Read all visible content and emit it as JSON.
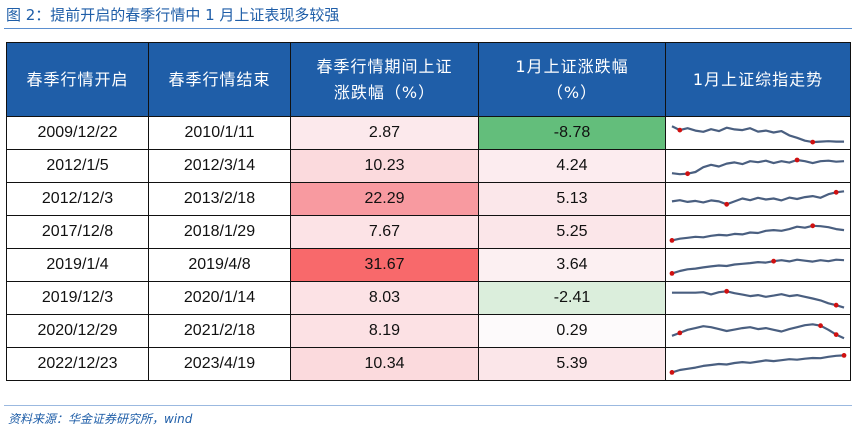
{
  "figure": {
    "title": "图 2：提前开启的春季行情中 1 月上证表现多较强",
    "source": "资料来源：华金证券研究所，wind"
  },
  "table": {
    "headers": [
      "春季行情开启",
      "春季行情结束",
      "春季行情期间上证\n涨跌幅（%）",
      "1月上证涨跌幅\n（%）",
      "1月上证综指走势"
    ],
    "rows": [
      {
        "start": "2009/12/22",
        "end": "2010/1/11",
        "spring_change": "2.87",
        "jan_change": "-8.78",
        "spring_bg": "#fce9ec",
        "jan_bg": "#63be7b",
        "spark": [
          0.78,
          0.62,
          0.7,
          0.6,
          0.55,
          0.66,
          0.58,
          0.72,
          0.65,
          0.62,
          0.7,
          0.56,
          0.6,
          0.52,
          0.58,
          0.4,
          0.3,
          0.18,
          0.12,
          0.14,
          0.16,
          0.14,
          0.14
        ],
        "marks": [
          1,
          18
        ]
      },
      {
        "start": "2012/1/5",
        "end": "2012/3/14",
        "spring_change": "10.23",
        "jan_change": "4.24",
        "spring_bg": "#fbdadd",
        "jan_bg": "#fcecef",
        "spark": [
          0.2,
          0.16,
          0.18,
          0.25,
          0.45,
          0.55,
          0.48,
          0.6,
          0.65,
          0.58,
          0.7,
          0.66,
          0.72,
          0.62,
          0.7,
          0.64,
          0.75,
          0.7,
          0.62,
          0.7,
          0.72,
          0.68,
          0.7
        ],
        "marks": [
          2,
          16
        ]
      },
      {
        "start": "2012/12/3",
        "end": "2013/2/18",
        "spring_change": "22.29",
        "jan_change": "5.13",
        "spring_bg": "#f89aa0",
        "jan_bg": "#fbe7ea",
        "spark": [
          0.4,
          0.45,
          0.38,
          0.42,
          0.36,
          0.44,
          0.4,
          0.28,
          0.4,
          0.52,
          0.45,
          0.55,
          0.48,
          0.52,
          0.44,
          0.56,
          0.5,
          0.58,
          0.62,
          0.55,
          0.7,
          0.78,
          0.82
        ],
        "marks": [
          7,
          21
        ]
      },
      {
        "start": "2017/12/8",
        "end": "2018/1/29",
        "spring_change": "7.67",
        "jan_change": "5.25",
        "spring_bg": "#fce3e6",
        "jan_bg": "#fbe6e9",
        "spark": [
          0.15,
          0.22,
          0.26,
          0.3,
          0.28,
          0.34,
          0.38,
          0.36,
          0.42,
          0.4,
          0.48,
          0.46,
          0.55,
          0.58,
          0.55,
          0.62,
          0.72,
          0.68,
          0.76,
          0.74,
          0.7,
          0.62,
          0.58
        ],
        "marks": [
          0,
          18
        ]
      },
      {
        "start": "2019/1/4",
        "end": "2019/4/8",
        "spring_change": "31.67",
        "jan_change": "3.64",
        "spring_bg": "#f8696b",
        "jan_bg": "#fcf0f2",
        "spark": [
          0.15,
          0.25,
          0.32,
          0.35,
          0.4,
          0.44,
          0.48,
          0.46,
          0.52,
          0.55,
          0.58,
          0.62,
          0.6,
          0.66,
          0.7,
          0.65,
          0.72,
          0.68,
          0.64,
          0.7,
          0.66,
          0.72,
          0.7
        ],
        "marks": [
          0,
          13
        ]
      },
      {
        "start": "2019/12/3",
        "end": "2020/1/14",
        "spring_change": "8.03",
        "jan_change": "-2.41",
        "spring_bg": "#fce2e5",
        "jan_bg": "#dbeedc",
        "spark": [
          0.72,
          0.72,
          0.72,
          0.72,
          0.74,
          0.65,
          0.74,
          0.78,
          0.7,
          0.64,
          0.58,
          0.62,
          0.55,
          0.6,
          0.66,
          0.58,
          0.62,
          0.55,
          0.48,
          0.4,
          0.28,
          0.2,
          0.1
        ],
        "marks": [
          7,
          21
        ]
      },
      {
        "start": "2020/12/29",
        "end": "2021/2/18",
        "spring_change": "8.19",
        "jan_change": "0.29",
        "spring_bg": "#fce1e4",
        "jan_bg": "#fdfafb",
        "spark": [
          0.3,
          0.42,
          0.55,
          0.62,
          0.7,
          0.66,
          0.58,
          0.5,
          0.56,
          0.62,
          0.66,
          0.58,
          0.62,
          0.55,
          0.48,
          0.58,
          0.66,
          0.74,
          0.78,
          0.72,
          0.55,
          0.35,
          0.2
        ],
        "marks": [
          1,
          19,
          21
        ]
      },
      {
        "start": "2022/12/23",
        "end": "2023/4/19",
        "spring_change": "10.34",
        "jan_change": "5.39",
        "spring_bg": "#fbdadd",
        "jan_bg": "#fbe6e9",
        "spark": [
          0.15,
          0.25,
          0.3,
          0.35,
          0.42,
          0.46,
          0.5,
          0.48,
          0.54,
          0.58,
          0.55,
          0.6,
          0.65,
          0.62,
          0.66,
          0.7,
          0.68,
          0.72,
          0.75,
          0.74,
          0.8,
          0.84,
          0.86
        ],
        "marks": [
          0,
          22
        ]
      }
    ],
    "spark_color": "#4a5f80",
    "mark_color": "#d01010"
  }
}
